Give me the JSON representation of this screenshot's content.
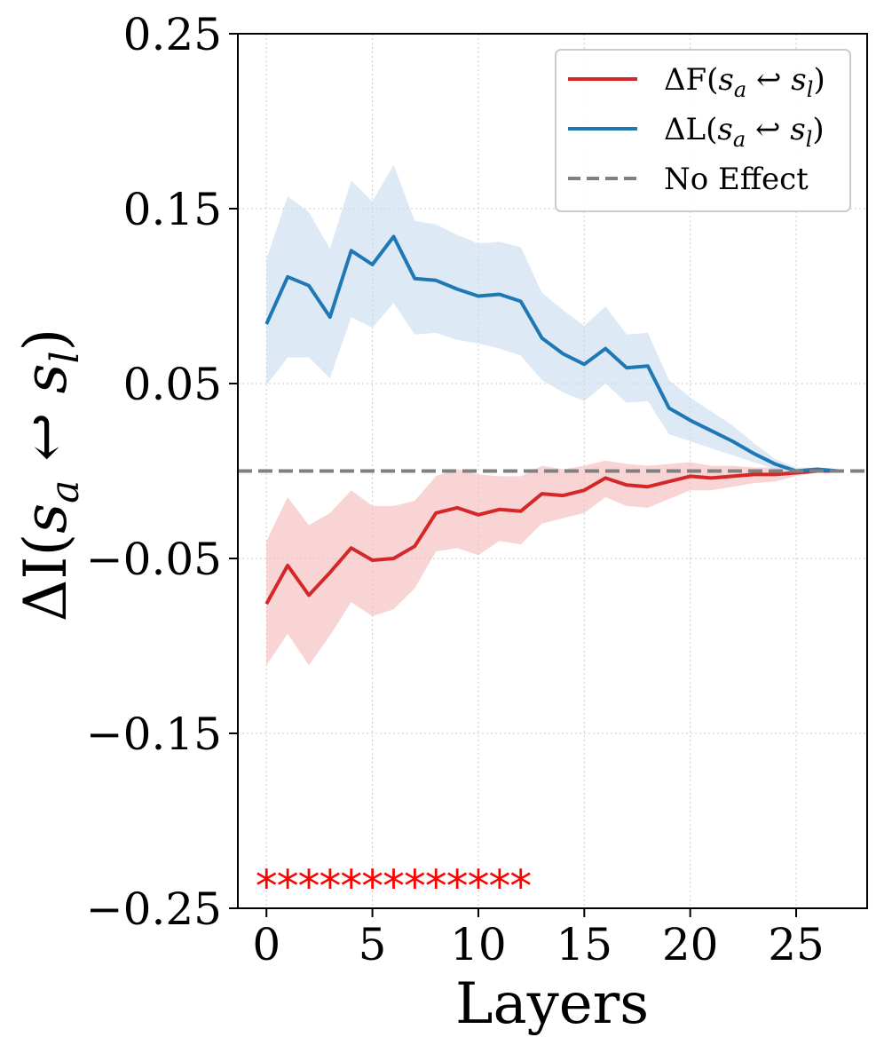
{
  "chart_data": {
    "type": "line",
    "xlabel": "Layers",
    "ylabel": "ΔI(s_a ↩ s_l)",
    "ylim": [
      -0.25,
      0.25
    ],
    "xlim": [
      -1.35,
      28.35
    ],
    "yticks": [
      {
        "value": 0.25,
        "label": "0.25"
      },
      {
        "value": 0.15,
        "label": "0.15"
      },
      {
        "value": 0.05,
        "label": "0.05"
      },
      {
        "value": -0.05,
        "label": "−0.05"
      },
      {
        "value": -0.15,
        "label": "−0.15"
      },
      {
        "value": -0.25,
        "label": "−0.25"
      }
    ],
    "xticks": [
      {
        "value": 0,
        "label": "0"
      },
      {
        "value": 5,
        "label": "5"
      },
      {
        "value": 10,
        "label": "10"
      },
      {
        "value": 15,
        "label": "15"
      },
      {
        "value": 20,
        "label": "20"
      },
      {
        "value": 25,
        "label": "25"
      }
    ],
    "grid": true,
    "legend_position": "top-right",
    "x": [
      0,
      1,
      2,
      3,
      4,
      5,
      6,
      7,
      8,
      9,
      10,
      11,
      12,
      13,
      14,
      15,
      16,
      17,
      18,
      19,
      20,
      21,
      22,
      23,
      24,
      25,
      26,
      27
    ],
    "series": [
      {
        "name": "ΔF(s_a ↩ s_l)",
        "color": "#d62728",
        "band_color": "#f4b8b9",
        "values": [
          -0.076,
          -0.054,
          -0.071,
          -0.058,
          -0.044,
          -0.051,
          -0.05,
          -0.043,
          -0.024,
          -0.021,
          -0.025,
          -0.022,
          -0.023,
          -0.013,
          -0.014,
          -0.011,
          -0.004,
          -0.008,
          -0.009,
          -0.006,
          -0.003,
          -0.004,
          -0.003,
          -0.002,
          -0.002,
          -0.001,
          0.0,
          0.0
        ],
        "lower": [
          -0.111,
          -0.093,
          -0.111,
          -0.094,
          -0.075,
          -0.083,
          -0.079,
          -0.067,
          -0.046,
          -0.044,
          -0.048,
          -0.04,
          -0.042,
          -0.03,
          -0.027,
          -0.024,
          -0.015,
          -0.02,
          -0.021,
          -0.016,
          -0.011,
          -0.011,
          -0.009,
          -0.007,
          -0.006,
          -0.003,
          -0.001,
          0.0
        ],
        "upper": [
          -0.04,
          -0.015,
          -0.031,
          -0.024,
          -0.011,
          -0.02,
          -0.02,
          -0.017,
          -0.003,
          0.001,
          -0.002,
          -0.003,
          -0.003,
          0.003,
          0.001,
          0.003,
          0.006,
          0.004,
          0.003,
          0.004,
          0.005,
          0.003,
          0.003,
          0.002,
          0.002,
          0.001,
          0.001,
          0.0
        ]
      },
      {
        "name": "ΔL(s_a ↩ s_l)",
        "color": "#1f77b4",
        "band_color": "#c6dbef",
        "values": [
          0.084,
          0.111,
          0.106,
          0.088,
          0.126,
          0.118,
          0.134,
          0.11,
          0.109,
          0.104,
          0.1,
          0.101,
          0.097,
          0.076,
          0.067,
          0.061,
          0.07,
          0.059,
          0.06,
          0.036,
          0.029,
          0.023,
          0.017,
          0.01,
          0.004,
          0.0,
          0.001,
          0.0
        ],
        "lower": [
          0.049,
          0.065,
          0.065,
          0.053,
          0.088,
          0.082,
          0.096,
          0.078,
          0.079,
          0.075,
          0.073,
          0.07,
          0.066,
          0.052,
          0.045,
          0.04,
          0.05,
          0.039,
          0.04,
          0.021,
          0.017,
          0.013,
          0.009,
          0.005,
          0.001,
          -0.001,
          0.0,
          0.0
        ],
        "upper": [
          0.121,
          0.157,
          0.148,
          0.127,
          0.166,
          0.154,
          0.175,
          0.143,
          0.141,
          0.135,
          0.13,
          0.131,
          0.128,
          0.102,
          0.092,
          0.083,
          0.094,
          0.078,
          0.079,
          0.052,
          0.042,
          0.034,
          0.026,
          0.016,
          0.007,
          0.002,
          0.002,
          0.0
        ]
      },
      {
        "name": "No Effect",
        "color": "#808080",
        "style": "dashed",
        "constant": 0.0
      }
    ],
    "significance": {
      "marker": "*",
      "y": -0.233,
      "color": "#ff0000",
      "layers": [
        0,
        1,
        2,
        3,
        4,
        5,
        6,
        7,
        8,
        9,
        10,
        11,
        12
      ]
    },
    "legend": [
      {
        "label_main": "ΔF(",
        "sub1": "a",
        "mid": "↩",
        "sub2": "l",
        "end": ")"
      },
      {
        "label_main": "ΔL(",
        "sub1": "a",
        "mid": "↩",
        "sub2": "l",
        "end": ")"
      },
      {
        "label": "No Effect"
      }
    ]
  }
}
